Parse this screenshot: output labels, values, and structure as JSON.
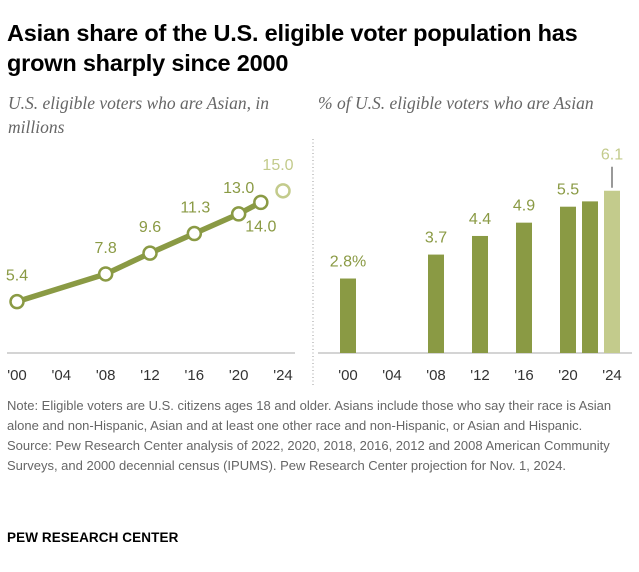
{
  "title": "Asian share of the U.S. eligible voter population has grown sharply since 2000",
  "colors": {
    "olive": "#8a9a44",
    "olive_light": "#c3cb8c",
    "axis": "#aaaaaa",
    "divider": "#999999",
    "text_gray": "#666666"
  },
  "chart_data": [
    {
      "type": "line",
      "title": "U.S. eligible voters who are Asian, in millions",
      "categories": [
        "'00",
        "'04",
        "'08",
        "'12",
        "'16",
        "'20",
        "'24"
      ],
      "x": [
        2000,
        2008,
        2012,
        2016,
        2020,
        2022,
        2024
      ],
      "values": [
        5.4,
        7.8,
        9.6,
        11.3,
        13.0,
        14.0,
        15.0
      ],
      "labels": [
        "5.4",
        "7.8",
        "9.6",
        "11.3",
        "13.0",
        "14.0",
        "15.0"
      ],
      "projected": [
        false,
        false,
        false,
        false,
        false,
        false,
        true
      ],
      "xlim": [
        2000,
        2024
      ],
      "ylim": [
        0,
        16
      ]
    },
    {
      "type": "bar",
      "title": "% of U.S. eligible voters who are Asian",
      "categories": [
        "'00",
        "'04",
        "'08",
        "'12",
        "'16",
        "'20",
        "'24"
      ],
      "x": [
        2000,
        2008,
        2012,
        2016,
        2020,
        2022,
        2024
      ],
      "values": [
        2.8,
        3.7,
        4.4,
        4.9,
        5.5,
        5.7,
        6.1
      ],
      "labels": [
        "2.8%",
        "3.7",
        "4.4",
        "4.9",
        "5.5",
        "",
        "6.1"
      ],
      "projected": [
        false,
        false,
        false,
        false,
        false,
        false,
        true
      ],
      "xlim": [
        2000,
        2024
      ],
      "ylim": [
        0,
        7
      ]
    }
  ],
  "note": "Note: Eligible voters are U.S. citizens ages 18 and older. Asians include those who say their race is Asian alone and non-Hispanic, Asian and at least one other race and non-Hispanic, or Asian and Hispanic.",
  "source": "Source: Pew Research Center analysis of 2022, 2020, 2018, 2016, 2012 and 2008 American Community Surveys, and 2000 decennial census (IPUMS). Pew Research Center projection for Nov. 1, 2024.",
  "brand": "PEW RESEARCH CENTER"
}
